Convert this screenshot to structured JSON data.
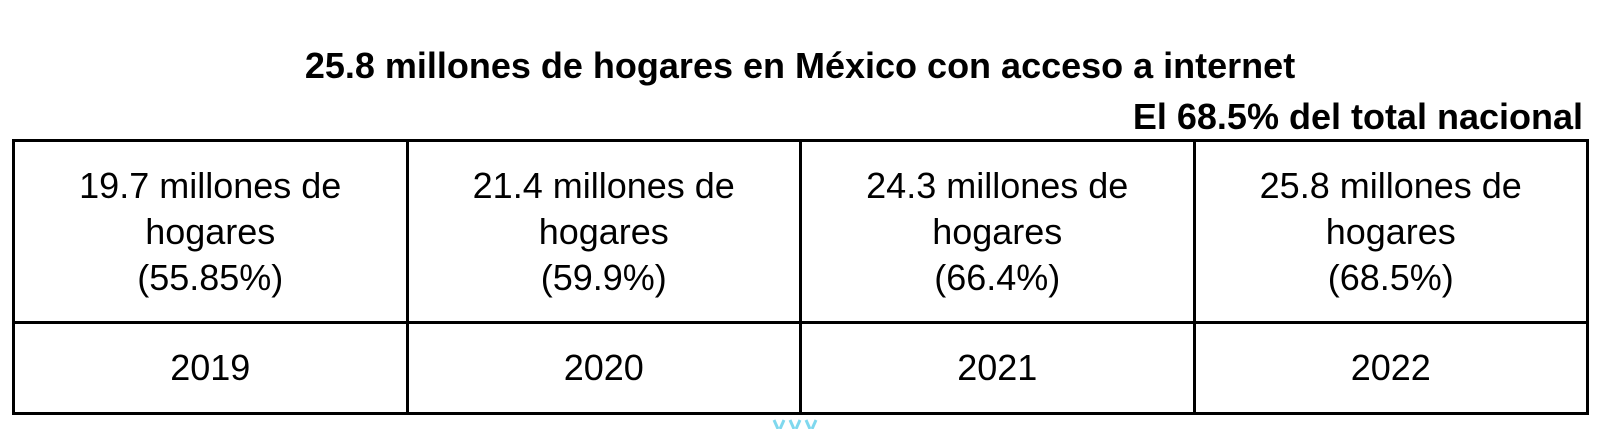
{
  "title": "25.8 millones de hogares en México con acceso a internet",
  "subtitle": "El 68.5% del total nacional",
  "table": {
    "columns": [
      {
        "line1": "19.7 millones de",
        "line2": "hogares",
        "line3": "(55.85%)",
        "year": "2019"
      },
      {
        "line1": "21.4 millones de",
        "line2": "hogares",
        "line3": "(59.9%)",
        "year": "2020"
      },
      {
        "line1": "24.3 millones de",
        "line2": "hogares",
        "line3": "(66.4%)",
        "year": "2021"
      },
      {
        "line1": "25.8 millones de",
        "line2": "hogares",
        "line3": "(68.5%)",
        "year": "2022"
      }
    ]
  },
  "colors": {
    "text": "#000000",
    "border": "#000000",
    "background": "#ffffff",
    "decor_accent": "#7fd8ee"
  }
}
